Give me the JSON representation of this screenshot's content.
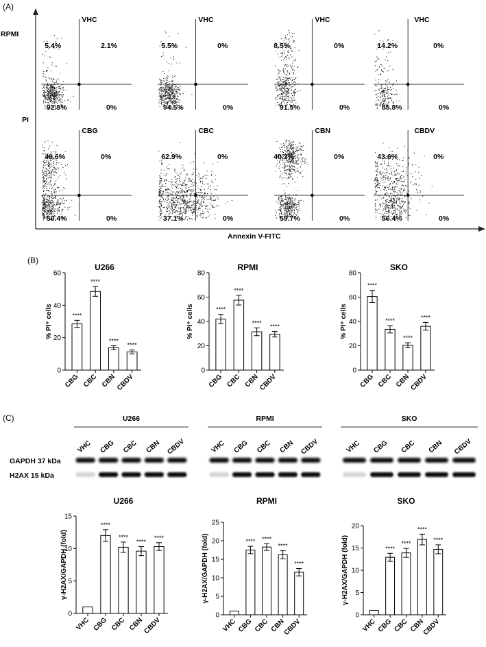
{
  "panel_labels": {
    "a": "(A)",
    "b": "(B)",
    "c": "(C)"
  },
  "flow": {
    "row_label": "RPMI",
    "y_axis_label": "PI",
    "x_axis_label": "Annexin V-FITC",
    "plots": [
      {
        "title": "VHC",
        "ul": "5.4%",
        "ur": "2.1%",
        "ll": "92.5%",
        "lr": "0%",
        "pattern": "vhc"
      },
      {
        "title": "VHC",
        "ul": "5.5%",
        "ur": "0%",
        "ll": "94.5%",
        "lr": "0%",
        "pattern": "vhc"
      },
      {
        "title": "VHC",
        "ul": "8.5%",
        "ur": "0%",
        "ll": "91.5%",
        "lr": "0%",
        "pattern": "vhc_tall"
      },
      {
        "title": "VHC",
        "ul": "14.2%",
        "ur": "0%",
        "ll": "85.8%",
        "lr": "0%",
        "pattern": "vhc_sparse"
      },
      {
        "title": "CBG",
        "ul": "49.6%",
        "ur": "0%",
        "ll": "50.4%",
        "lr": "0%",
        "pattern": "split"
      },
      {
        "title": "CBC",
        "ul": "62.9%",
        "ur": "0%",
        "ll": "37.1%",
        "lr": "0%",
        "pattern": "smear"
      },
      {
        "title": "CBN",
        "ul": "40.3%",
        "ur": "0%",
        "ll": "59.7%",
        "lr": "0%",
        "pattern": "two_blobs"
      },
      {
        "title": "CBDV",
        "ul": "43.6%",
        "ur": "0%",
        "ll": "56.4%",
        "lr": "0%",
        "pattern": "diffuse"
      }
    ]
  },
  "chart_data": [
    {
      "type": "bar",
      "title": "U266",
      "ylabel": "% PI⁺ cells",
      "categories": [
        "CBG",
        "CBC",
        "CBN",
        "CBDV"
      ],
      "values": [
        28.5,
        48.5,
        13.8,
        11.2
      ],
      "errors": [
        2.2,
        3.0,
        1.2,
        1.2
      ],
      "annotations": [
        "****",
        "****",
        "****",
        "****"
      ],
      "ylim": [
        0,
        60
      ],
      "yticks": [
        0,
        20,
        40,
        60
      ]
    },
    {
      "type": "bar",
      "title": "RPMI",
      "ylabel": "% PI⁺ cells",
      "categories": [
        "CBG",
        "CBC",
        "CBN",
        "CBDV"
      ],
      "values": [
        42,
        57.5,
        31.5,
        29.5
      ],
      "errors": [
        3.8,
        4.0,
        3.2,
        2.3
      ],
      "annotations": [
        "****",
        "****",
        "****",
        "****"
      ],
      "ylim": [
        0,
        80
      ],
      "yticks": [
        0,
        20,
        40,
        60,
        80
      ]
    },
    {
      "type": "bar",
      "title": "SKO",
      "ylabel": "% PI⁺ cells",
      "categories": [
        "CBG",
        "CBC",
        "CBN",
        "CBDV"
      ],
      "values": [
        60.5,
        33.5,
        20.5,
        36
      ],
      "errors": [
        5.0,
        3.0,
        2.0,
        3.2
      ],
      "annotations": [
        "****",
        "****",
        "****",
        "****"
      ],
      "ylim": [
        0,
        80
      ],
      "yticks": [
        0,
        20,
        40,
        60,
        80
      ]
    },
    {
      "type": "bar",
      "title": "U266",
      "ylabel": "γ-H2AX/GAPDH (fold)",
      "categories": [
        "VHC",
        "CBG",
        "CBC",
        "CBN",
        "CBDV"
      ],
      "values": [
        1,
        12,
        10.2,
        9.6,
        10.3
      ],
      "errors": [
        0,
        0.9,
        0.8,
        0.7,
        0.6
      ],
      "annotations": [
        "",
        "****",
        "****",
        "****",
        "****"
      ],
      "ylim": [
        0,
        15
      ],
      "yticks": [
        0,
        5,
        10,
        15
      ]
    },
    {
      "type": "bar",
      "title": "RPMI",
      "ylabel": "γ-H2AX/GAPDH (fold)",
      "categories": [
        "VHC",
        "CBG",
        "CBC",
        "CBN",
        "CBDV"
      ],
      "values": [
        1,
        17.5,
        18.3,
        16.2,
        11.5
      ],
      "errors": [
        0,
        1.0,
        0.9,
        1.1,
        1.0
      ],
      "annotations": [
        "",
        "****",
        "****",
        "****",
        "****"
      ],
      "ylim": [
        0,
        25
      ],
      "yticks": [
        0,
        5,
        10,
        15,
        20,
        25
      ]
    },
    {
      "type": "bar",
      "title": "SKO",
      "ylabel": "γ-H2AX/GAPDH (fold)",
      "categories": [
        "VHC",
        "CBG",
        "CBC",
        "CBN",
        "CBDV"
      ],
      "values": [
        1,
        12.9,
        13.9,
        16.9,
        14.7
      ],
      "errors": [
        0,
        0.9,
        1.0,
        1.2,
        1.0
      ],
      "annotations": [
        "",
        "****",
        "****",
        "****",
        "****"
      ],
      "ylim": [
        0,
        20
      ],
      "yticks": [
        0,
        5,
        10,
        15,
        20
      ]
    }
  ],
  "blot": {
    "groups": [
      {
        "title": "U266",
        "lanes": [
          "VHC",
          "CBG",
          "CBC",
          "CBN",
          "CBDV"
        ]
      },
      {
        "title": "RPMI",
        "lanes": [
          "VHC",
          "CBG",
          "CBC",
          "CBN",
          "CBDV"
        ]
      },
      {
        "title": "SKO",
        "lanes": [
          "VHC",
          "CBG",
          "CBC",
          "CBN",
          "CBDV"
        ]
      }
    ],
    "rows": [
      {
        "label": "GAPDH 37 kDa"
      },
      {
        "label": "H2AX 15 kDa"
      }
    ]
  }
}
